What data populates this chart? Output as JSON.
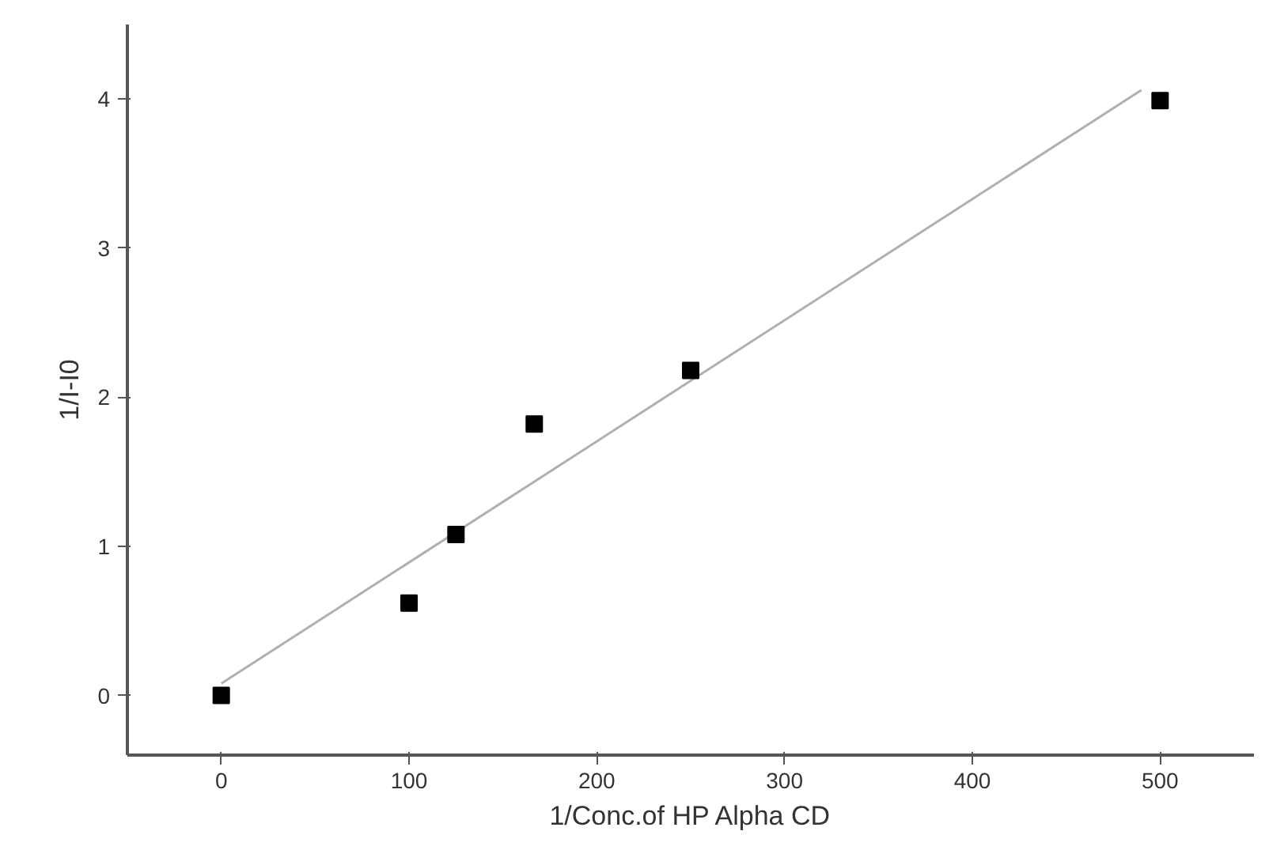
{
  "chart_data": {
    "type": "scatter",
    "xlabel": "1/Conc.of HP Alpha CD",
    "ylabel": "1/I-I0",
    "xlim": [
      -50,
      550
    ],
    "ylim": [
      -0.4,
      4.5
    ],
    "xticks": [
      0,
      100,
      200,
      300,
      400,
      500
    ],
    "yticks": [
      0,
      1,
      2,
      3,
      4
    ],
    "grid": false,
    "series": [
      {
        "color": "#000000",
        "marker": "square",
        "x": [
          0,
          100,
          125,
          166.7,
          250,
          500
        ],
        "values": [
          0,
          0.62,
          1.08,
          1.82,
          2.18,
          3.99
        ]
      },
      {
        "type": "line",
        "color": "#b0b0b0",
        "marker": "none",
        "x": [
          0,
          490
        ],
        "values": [
          0.08,
          4.06
        ]
      }
    ]
  }
}
